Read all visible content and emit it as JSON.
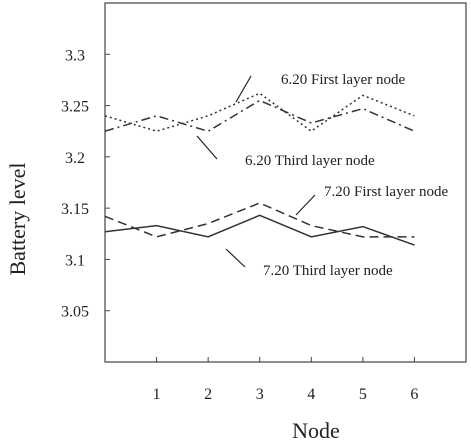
{
  "chart_data": {
    "type": "line",
    "xlabel": "Node",
    "ylabel": "Battery level",
    "x": [
      0,
      1,
      2,
      3,
      4,
      5,
      6
    ],
    "xticks": [
      1,
      2,
      3,
      4,
      5,
      6
    ],
    "xlim": [
      0,
      7
    ],
    "yticks": [
      3.05,
      3.1,
      3.15,
      3.2,
      3.25,
      3.3
    ],
    "ytick_labels": [
      "3.05",
      "3.1",
      "3.15",
      "3.2",
      "3.25",
      "3.3"
    ],
    "ylim": [
      3.0,
      3.35
    ],
    "grid": false,
    "series": [
      {
        "name": "6.20 First layer node",
        "style": "dotted",
        "color": "#333333",
        "values": [
          3.24,
          3.225,
          3.24,
          3.262,
          3.225,
          3.26,
          3.24
        ]
      },
      {
        "name": "6.20 Third layer node",
        "style": "dashdot",
        "color": "#333333",
        "values": [
          3.225,
          3.24,
          3.225,
          3.255,
          3.233,
          3.247,
          3.225
        ]
      },
      {
        "name": "7.20 First layer node",
        "style": "dashed",
        "color": "#333333",
        "values": [
          3.142,
          3.122,
          3.135,
          3.155,
          3.133,
          3.122,
          3.122
        ]
      },
      {
        "name": "7.20 Third layer node",
        "style": "solid",
        "color": "#333333",
        "values": [
          3.127,
          3.133,
          3.122,
          3.143,
          3.122,
          3.132,
          3.114
        ]
      }
    ]
  }
}
